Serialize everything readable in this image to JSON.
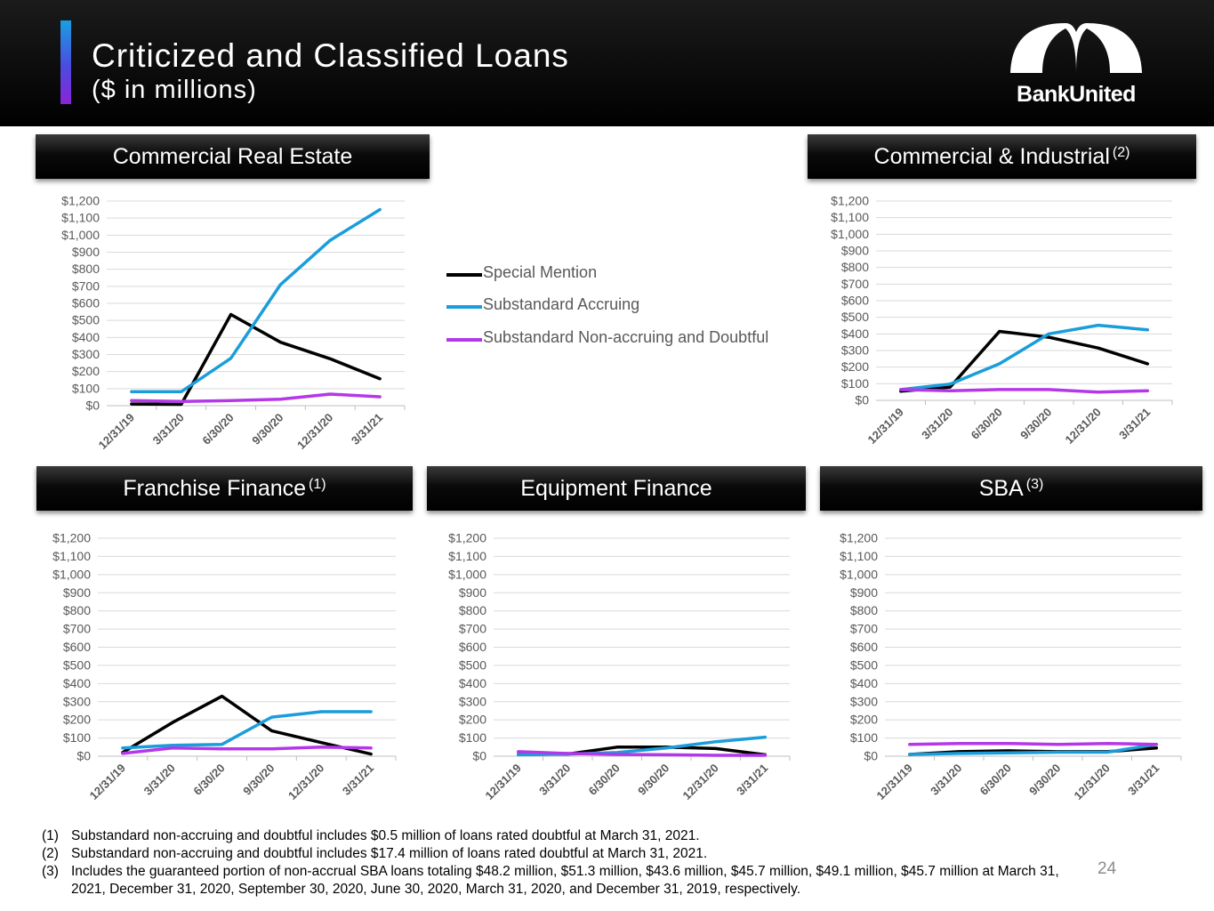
{
  "header": {
    "title": "Criticized and Classified Loans",
    "subtitle": "($ in millions)",
    "logo_text": "BankUnited"
  },
  "legend": [
    {
      "name": "Special Mention",
      "color": "#000000"
    },
    {
      "name": "Substandard Accruing",
      "color": "#1b9ddb"
    },
    {
      "name": "Substandard Non-accruing and Doubtful",
      "color": "#b438e8"
    }
  ],
  "chart_data": [
    {
      "type": "line",
      "title": "Commercial Real Estate",
      "title_sup": "",
      "categories": [
        "12/31/19",
        "3/31/20",
        "6/30/20",
        "9/30/20",
        "12/31/20",
        "3/31/21"
      ],
      "ylim": [
        0,
        1200
      ],
      "yticks": [
        "$0",
        "$100",
        "$200",
        "$300",
        "$400",
        "$500",
        "$600",
        "$700",
        "$800",
        "$900",
        "$1,000",
        "$1,100",
        "$1,200"
      ],
      "series": [
        {
          "name": "Special Mention",
          "values": [
            10,
            8,
            535,
            372,
            275,
            158
          ]
        },
        {
          "name": "Substandard Accruing",
          "values": [
            82,
            82,
            278,
            710,
            970,
            1150
          ]
        },
        {
          "name": "Substandard Non-accruing and Doubtful",
          "values": [
            30,
            25,
            30,
            38,
            68,
            52
          ]
        }
      ]
    },
    {
      "type": "line",
      "title": "Commercial & Industrial",
      "title_sup": "(2)",
      "categories": [
        "12/31/19",
        "3/31/20",
        "6/30/20",
        "9/30/20",
        "12/31/20",
        "3/31/21"
      ],
      "ylim": [
        0,
        1200
      ],
      "yticks": [
        "$0",
        "$100",
        "$200",
        "$300",
        "$400",
        "$500",
        "$600",
        "$700",
        "$800",
        "$900",
        "$1,000",
        "$1,100",
        "$1,200"
      ],
      "series": [
        {
          "name": "Special Mention",
          "values": [
            55,
            80,
            415,
            380,
            315,
            220
          ]
        },
        {
          "name": "Substandard Accruing",
          "values": [
            65,
            98,
            220,
            400,
            452,
            425
          ]
        },
        {
          "name": "Substandard Non-accruing and Doubtful",
          "values": [
            65,
            58,
            65,
            65,
            50,
            58
          ]
        }
      ]
    },
    {
      "type": "line",
      "title": "Franchise Finance",
      "title_sup": "(1)",
      "categories": [
        "12/31/19",
        "3/31/20",
        "6/30/20",
        "9/30/20",
        "12/31/20",
        "3/31/21"
      ],
      "ylim": [
        0,
        1200
      ],
      "yticks": [
        "$0",
        "$100",
        "$200",
        "$300",
        "$400",
        "$500",
        "$600",
        "$700",
        "$800",
        "$900",
        "$1,000",
        "$1,100",
        "$1,200"
      ],
      "series": [
        {
          "name": "Special Mention",
          "values": [
            20,
            185,
            330,
            140,
            75,
            12
          ]
        },
        {
          "name": "Substandard Accruing",
          "values": [
            45,
            60,
            65,
            215,
            245,
            245
          ]
        },
        {
          "name": "Substandard Non-accruing and Doubtful",
          "values": [
            15,
            45,
            40,
            40,
            50,
            45
          ]
        }
      ]
    },
    {
      "type": "line",
      "title": "Equipment Finance",
      "title_sup": "",
      "categories": [
        "12/31/19",
        "3/31/20",
        "6/30/20",
        "9/30/20",
        "12/31/20",
        "3/31/21"
      ],
      "ylim": [
        0,
        1200
      ],
      "yticks": [
        "$0",
        "$100",
        "$200",
        "$300",
        "$400",
        "$500",
        "$600",
        "$700",
        "$800",
        "$900",
        "$1,000",
        "$1,100",
        "$1,200"
      ],
      "series": [
        {
          "name": "Special Mention",
          "values": [
            10,
            12,
            50,
            50,
            42,
            8
          ]
        },
        {
          "name": "Substandard Accruing",
          "values": [
            8,
            12,
            20,
            45,
            80,
            105
          ]
        },
        {
          "name": "Substandard Non-accruing and Doubtful",
          "values": [
            25,
            15,
            10,
            8,
            5,
            5
          ]
        }
      ]
    },
    {
      "type": "line",
      "title": "SBA",
      "title_sup": "(3)",
      "categories": [
        "12/31/19",
        "3/31/20",
        "6/30/20",
        "9/30/20",
        "12/31/20",
        "3/31/21"
      ],
      "ylim": [
        0,
        1200
      ],
      "yticks": [
        "$0",
        "$100",
        "$200",
        "$300",
        "$400",
        "$500",
        "$600",
        "$700",
        "$800",
        "$900",
        "$1,000",
        "$1,100",
        "$1,200"
      ],
      "series": [
        {
          "name": "Special Mention",
          "values": [
            10,
            25,
            30,
            25,
            25,
            45
          ]
        },
        {
          "name": "Substandard Accruing",
          "values": [
            10,
            15,
            18,
            22,
            22,
            65
          ]
        },
        {
          "name": "Substandard Non-accruing and Doubtful",
          "values": [
            65,
            70,
            70,
            65,
            70,
            65
          ]
        }
      ]
    }
  ],
  "footnotes": [
    {
      "num": "(1)",
      "text": "Substandard non-accruing and doubtful includes $0.5 million of loans rated doubtful at March 31, 2021."
    },
    {
      "num": "(2)",
      "text": "Substandard non-accruing and doubtful includes $17.4 million of loans rated doubtful at March 31, 2021."
    },
    {
      "num": "(3)",
      "text": "Includes the guaranteed portion of non-accrual SBA loans totaling  $48.2 million, $51.3 million, $43.6 million, $45.7 million, $49.1 million, $45.7 million at March 31, 2021, December 31, 2020, September 30, 2020, June 30, 2020, March 31, 2020, and December 31, 2019, respectively."
    }
  ],
  "page_number": "24"
}
